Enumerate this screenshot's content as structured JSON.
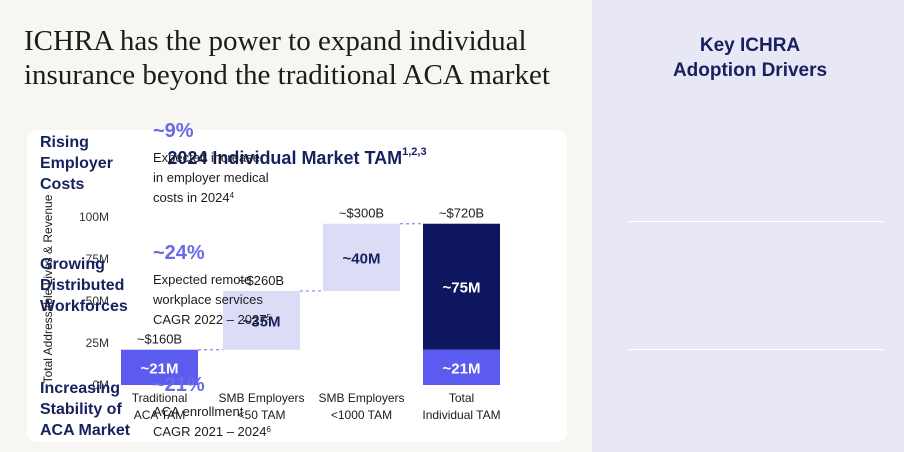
{
  "headline": {
    "line1": "ICHRA has the power to expand individual",
    "line2": "insurance beyond the traditional ACA market"
  },
  "chart_data": {
    "type": "bar",
    "variant": "waterfall",
    "title": "2024 Individual Market TAM",
    "title_footnote": "1,2,3",
    "ylabel": "Total Addressable Lives & Revenue",
    "xlabel": "",
    "ylim": [
      0,
      100
    ],
    "yticks": [
      {
        "value": 0,
        "label": "0M"
      },
      {
        "value": 25,
        "label": "25M"
      },
      {
        "value": 50,
        "label": "50M"
      },
      {
        "value": 75,
        "label": "75M"
      },
      {
        "value": 100,
        "label": "100M"
      }
    ],
    "bars": [
      {
        "category": "Traditional ACA TAM",
        "cat_line1": "Traditional",
        "cat_line2": "ACA TAM",
        "base": 0,
        "value": 21,
        "label": "~21M",
        "revenue": "~$160B",
        "color": "#5b5bf0",
        "text_color": "#ffffff"
      },
      {
        "category": "SMB Employers <50 TAM",
        "cat_line1": "SMB Employers",
        "cat_line2": "<50 TAM",
        "base": 21,
        "value": 35,
        "label": "~35M",
        "revenue": "~$260B",
        "color": "#dcdcf6",
        "text_color": "#17215e"
      },
      {
        "category": "SMB Employers <1000 TAM",
        "cat_line1": "SMB Employers",
        "cat_line2": "<1000 TAM",
        "base": 56,
        "value": 40,
        "label": "~40M",
        "revenue": "~$300B",
        "color": "#dcdcf6",
        "text_color": "#17215e"
      },
      {
        "category": "Total Individual TAM",
        "cat_line1": "Total",
        "cat_line2": "Individual TAM",
        "stacked": true,
        "segments": [
          {
            "base": 0,
            "value": 21,
            "label": "~21M",
            "color": "#5b5bf0",
            "text_color": "#ffffff"
          },
          {
            "base": 21,
            "value": 75,
            "label": "~75M",
            "color": "#0f1660",
            "text_color": "#ffffff"
          }
        ],
        "revenue": "~$720B"
      }
    ]
  },
  "drivers_panel": {
    "title_line1": "Key ICHRA",
    "title_line2": "Adoption Drivers",
    "drivers": [
      {
        "name_lines": [
          "Rising",
          "Employer",
          "Costs"
        ],
        "pct": "~9%",
        "desc_lines": [
          "Expected increase",
          "in employer medical",
          "costs in 2024"
        ],
        "footnote": "4"
      },
      {
        "name_lines": [
          "Growing",
          "Distributed",
          "Workforces"
        ],
        "pct": "~24%",
        "desc_lines": [
          "Expected remote",
          "workplace services",
          "CAGR 2022 – 2027"
        ],
        "footnote": "5"
      },
      {
        "name_lines": [
          "Increasing",
          "Stability of",
          "ACA Market"
        ],
        "pct": "~21%",
        "desc_lines": [
          "ACA enrollment",
          "CAGR 2021 – 2024"
        ],
        "footnote": "6"
      }
    ]
  },
  "colors": {
    "navy": "#17215e",
    "accent": "#6a6ae8",
    "bar_blue": "#5b5bf0",
    "bar_light": "#dcdcf6",
    "bar_dark": "#0f1660",
    "panel_bg": "#e7e7f6"
  }
}
